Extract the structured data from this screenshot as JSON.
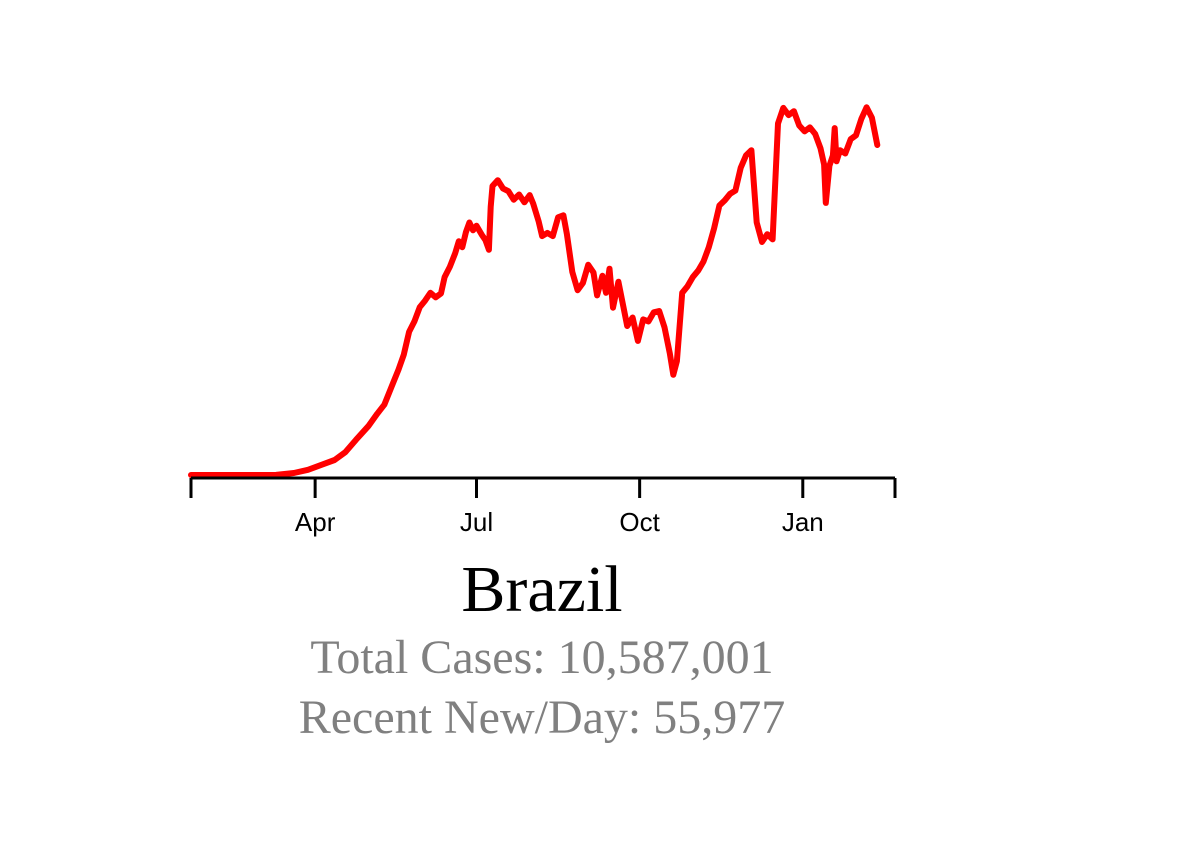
{
  "title": "Brazil",
  "stats": {
    "total": "Total Cases: 10,587,001",
    "recent": "Recent New/Day: 55,977"
  },
  "colors": {
    "line": "#ff0000",
    "axis": "#000000",
    "stats": "#808080"
  },
  "chart_data": {
    "type": "line",
    "title": "Brazil",
    "xlabel": "",
    "ylabel": "",
    "x_axis": {
      "start": "2020-01-22",
      "end": "2021-02-22",
      "ticks": [
        {
          "date": "2020-04-01",
          "label": "Apr"
        },
        {
          "date": "2020-07-01",
          "label": "Jul"
        },
        {
          "date": "2020-10-01",
          "label": "Oct"
        },
        {
          "date": "2021-01-01",
          "label": "Jan"
        }
      ]
    },
    "ylim": [
      0,
      59000
    ],
    "grid": false,
    "y_axis_visible": false,
    "series": [
      {
        "points": [
          [
            "2020-01-22",
            0
          ],
          [
            "2020-02-15",
            0
          ],
          [
            "2020-03-01",
            0
          ],
          [
            "2020-03-10",
            20
          ],
          [
            "2020-03-20",
            300
          ],
          [
            "2020-03-28",
            800
          ],
          [
            "2020-04-05",
            1600
          ],
          [
            "2020-04-12",
            2300
          ],
          [
            "2020-04-18",
            3500
          ],
          [
            "2020-04-24",
            5400
          ],
          [
            "2020-05-01",
            7500
          ],
          [
            "2020-05-06",
            9400
          ],
          [
            "2020-05-10",
            10800
          ],
          [
            "2020-05-14",
            13500
          ],
          [
            "2020-05-18",
            16200
          ],
          [
            "2020-05-21",
            18500
          ],
          [
            "2020-05-24",
            22000
          ],
          [
            "2020-05-27",
            23600
          ],
          [
            "2020-05-30",
            25800
          ],
          [
            "2020-06-02",
            26800
          ],
          [
            "2020-06-05",
            28000
          ],
          [
            "2020-06-08",
            27300
          ],
          [
            "2020-06-11",
            27900
          ],
          [
            "2020-06-13",
            30400
          ],
          [
            "2020-06-16",
            32000
          ],
          [
            "2020-06-19",
            34100
          ],
          [
            "2020-06-21",
            35900
          ],
          [
            "2020-06-23",
            35000
          ],
          [
            "2020-06-25",
            37300
          ],
          [
            "2020-06-27",
            38800
          ],
          [
            "2020-06-29",
            37600
          ],
          [
            "2020-07-01",
            38300
          ],
          [
            "2020-07-04",
            36900
          ],
          [
            "2020-07-06",
            36100
          ],
          [
            "2020-07-08",
            34600
          ],
          [
            "2020-07-09",
            41200
          ],
          [
            "2020-07-10",
            44400
          ],
          [
            "2020-07-13",
            45300
          ],
          [
            "2020-07-16",
            44000
          ],
          [
            "2020-07-19",
            43600
          ],
          [
            "2020-07-22",
            42300
          ],
          [
            "2020-07-25",
            43100
          ],
          [
            "2020-07-28",
            41900
          ],
          [
            "2020-07-31",
            43000
          ],
          [
            "2020-08-02",
            41700
          ],
          [
            "2020-08-05",
            39000
          ],
          [
            "2020-08-07",
            36700
          ],
          [
            "2020-08-10",
            37200
          ],
          [
            "2020-08-13",
            36700
          ],
          [
            "2020-08-16",
            39600
          ],
          [
            "2020-08-19",
            39900
          ],
          [
            "2020-08-21",
            37000
          ],
          [
            "2020-08-24",
            31200
          ],
          [
            "2020-08-27",
            28400
          ],
          [
            "2020-08-30",
            29500
          ],
          [
            "2020-09-02",
            32300
          ],
          [
            "2020-09-05",
            31100
          ],
          [
            "2020-09-07",
            27600
          ],
          [
            "2020-09-10",
            30600
          ],
          [
            "2020-09-12",
            28000
          ],
          [
            "2020-09-14",
            31700
          ],
          [
            "2020-09-16",
            25700
          ],
          [
            "2020-09-19",
            29700
          ],
          [
            "2020-09-21",
            27000
          ],
          [
            "2020-09-24",
            22900
          ],
          [
            "2020-09-27",
            24200
          ],
          [
            "2020-09-30",
            20600
          ],
          [
            "2020-10-03",
            23900
          ],
          [
            "2020-10-06",
            23600
          ],
          [
            "2020-10-09",
            25000
          ],
          [
            "2020-10-12",
            25200
          ],
          [
            "2020-10-15",
            22700
          ],
          [
            "2020-10-18",
            18700
          ],
          [
            "2020-10-20",
            15400
          ],
          [
            "2020-10-22",
            17500
          ],
          [
            "2020-10-25",
            28000
          ],
          [
            "2020-10-28",
            29000
          ],
          [
            "2020-10-31",
            30400
          ],
          [
            "2020-11-03",
            31400
          ],
          [
            "2020-11-06",
            32800
          ],
          [
            "2020-11-09",
            35000
          ],
          [
            "2020-11-12",
            37900
          ],
          [
            "2020-11-15",
            41400
          ],
          [
            "2020-11-18",
            42200
          ],
          [
            "2020-11-21",
            43200
          ],
          [
            "2020-11-24",
            43700
          ],
          [
            "2020-11-27",
            47200
          ],
          [
            "2020-11-30",
            49100
          ],
          [
            "2020-12-03",
            49900
          ],
          [
            "2020-12-06",
            38800
          ],
          [
            "2020-12-09",
            35800
          ],
          [
            "2020-12-12",
            37000
          ],
          [
            "2020-12-15",
            36200
          ],
          [
            "2020-12-18",
            54000
          ],
          [
            "2020-12-21",
            56400
          ],
          [
            "2020-12-24",
            55300
          ],
          [
            "2020-12-27",
            55900
          ],
          [
            "2020-12-30",
            53700
          ],
          [
            "2021-01-02",
            52800
          ],
          [
            "2021-01-05",
            53400
          ],
          [
            "2021-01-08",
            52400
          ],
          [
            "2021-01-11",
            50200
          ],
          [
            "2021-01-13",
            47700
          ],
          [
            "2021-01-14",
            41800
          ],
          [
            "2021-01-16",
            47500
          ],
          [
            "2021-01-18",
            49100
          ],
          [
            "2021-01-19",
            53300
          ],
          [
            "2021-01-20",
            48200
          ],
          [
            "2021-01-22",
            49900
          ],
          [
            "2021-01-25",
            49400
          ],
          [
            "2021-01-28",
            51600
          ],
          [
            "2021-01-31",
            52200
          ],
          [
            "2021-02-03",
            54700
          ],
          [
            "2021-02-06",
            56500
          ],
          [
            "2021-02-09",
            54900
          ],
          [
            "2021-02-12",
            50700
          ]
        ]
      }
    ]
  }
}
